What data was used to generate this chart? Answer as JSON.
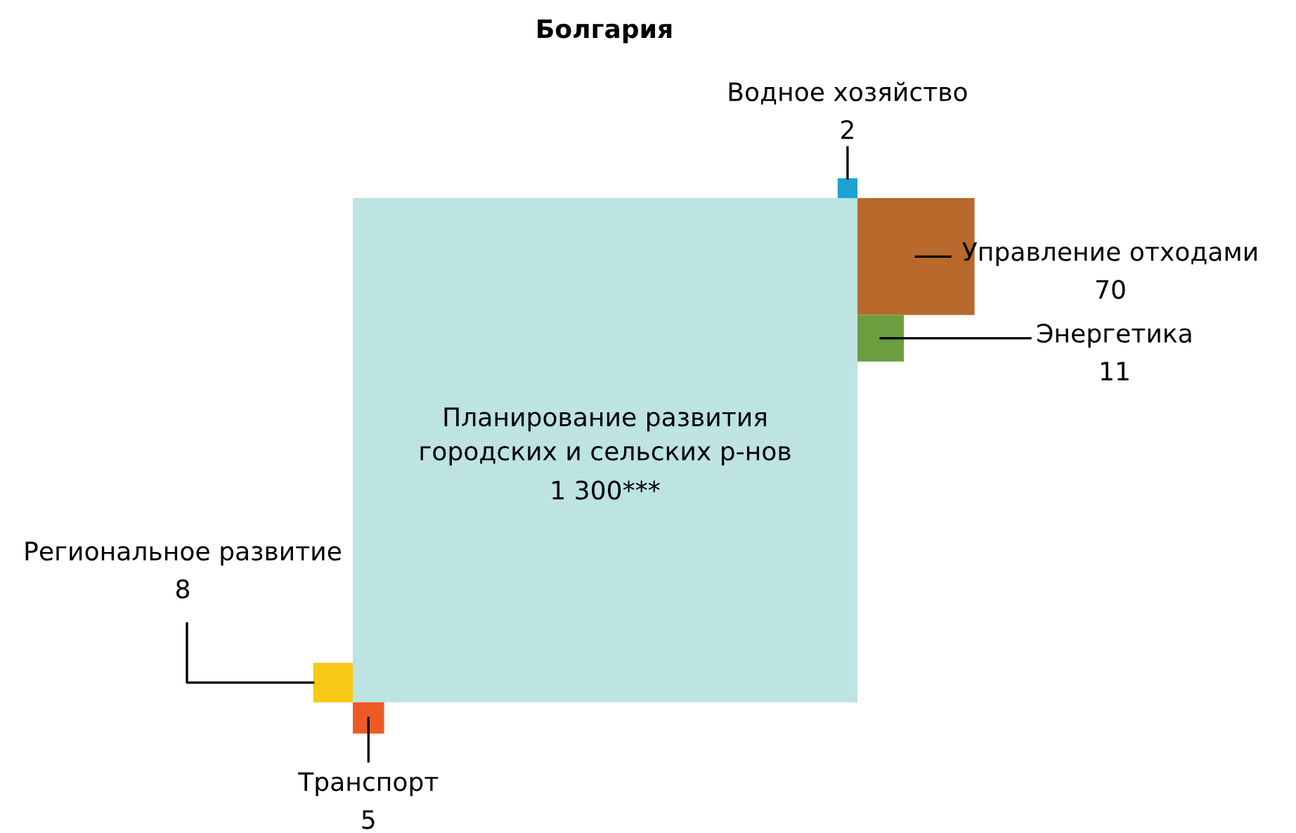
{
  "chart_data": {
    "type": "other",
    "title": "Болгария",
    "categories": [
      "Планирование развития\nгородских и сельских р-нов",
      "Водное хозяйство",
      "Управление отходами",
      "Энергетика",
      "Региональное развитие",
      "Транспорт"
    ],
    "values": [
      1300,
      2,
      70,
      11,
      8,
      5
    ],
    "value_labels": [
      "1 300***",
      "2",
      "70",
      "11",
      "8",
      "5"
    ],
    "colors": [
      "#bde3e3",
      "#1aa3d4",
      "#b8692b",
      "#6a9e3f",
      "#f7c815",
      "#ee5a24"
    ]
  }
}
